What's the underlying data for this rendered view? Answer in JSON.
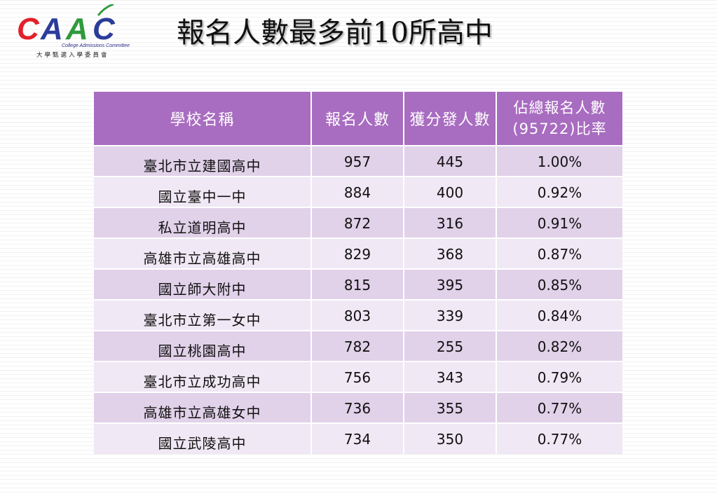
{
  "logo": {
    "name": "CAAC",
    "english": "College Admissions Committee",
    "chinese": "大學甄選入學委員會",
    "colors": {
      "red": "#e3202b",
      "blue": "#2b3c9a",
      "green": "#2f9a3c"
    }
  },
  "title": "報名人數最多前10所高中",
  "table": {
    "headers": {
      "school": "學校名稱",
      "applicants": "報名人數",
      "admitted": "獲分發人數",
      "ratio_line1": "佔總報名人數",
      "ratio_line2": "(95722)比率"
    },
    "rows": [
      {
        "school": "臺北市立建國高中",
        "applicants": "957",
        "admitted": "445",
        "ratio": "1.00%"
      },
      {
        "school": "國立臺中一中",
        "applicants": "884",
        "admitted": "400",
        "ratio": "0.92%"
      },
      {
        "school": "私立道明高中",
        "applicants": "872",
        "admitted": "316",
        "ratio": "0.91%"
      },
      {
        "school": "高雄市立高雄高中",
        "applicants": "829",
        "admitted": "368",
        "ratio": "0.87%"
      },
      {
        "school": "國立師大附中",
        "applicants": "815",
        "admitted": "395",
        "ratio": "0.85%"
      },
      {
        "school": "臺北市立第一女中",
        "applicants": "803",
        "admitted": "339",
        "ratio": "0.84%"
      },
      {
        "school": "國立桃園高中",
        "applicants": "782",
        "admitted": "255",
        "ratio": "0.82%"
      },
      {
        "school": "臺北市立成功高中",
        "applicants": "756",
        "admitted": "343",
        "ratio": "0.79%"
      },
      {
        "school": "高雄市立高雄女中",
        "applicants": "736",
        "admitted": "355",
        "ratio": "0.77%"
      },
      {
        "school": "國立武陵高中",
        "applicants": "734",
        "admitted": "350",
        "ratio": "0.77%"
      }
    ]
  }
}
